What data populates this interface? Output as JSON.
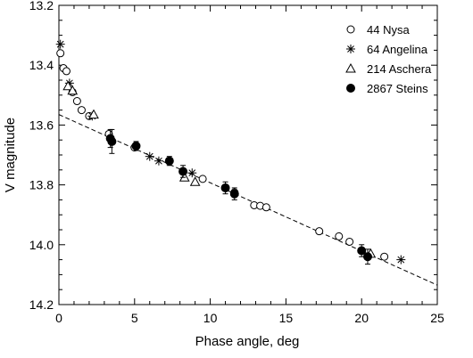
{
  "chart_data": {
    "type": "scatter",
    "xlabel": "Phase angle, deg",
    "ylabel": "V magnitude",
    "xlim": [
      0,
      25
    ],
    "ylim": [
      14.2,
      13.2
    ],
    "y_inverted": true,
    "x_ticks": [
      0,
      5,
      10,
      15,
      20,
      25
    ],
    "y_ticks": [
      13.2,
      13.4,
      13.6,
      13.8,
      14.0,
      14.2
    ],
    "y_tick_labels": [
      "13.2",
      "13.4",
      "13.6",
      "13.8",
      "14.0",
      "14.2"
    ],
    "legend_position": "top-right",
    "grid": false,
    "fit_line": {
      "style": "dashed",
      "x": [
        0,
        25
      ],
      "y": [
        13.565,
        14.135
      ]
    },
    "series": [
      {
        "name": "44 Nysa",
        "marker": "open-circle",
        "points": [
          {
            "x": 0.1,
            "y": 13.36
          },
          {
            "x": 0.3,
            "y": 13.41
          },
          {
            "x": 0.5,
            "y": 13.42
          },
          {
            "x": 0.9,
            "y": 13.49
          },
          {
            "x": 1.2,
            "y": 13.52
          },
          {
            "x": 1.5,
            "y": 13.55
          },
          {
            "x": 2.0,
            "y": 13.57
          },
          {
            "x": 3.3,
            "y": 13.63
          },
          {
            "x": 5.0,
            "y": 13.675
          },
          {
            "x": 9.5,
            "y": 13.78
          },
          {
            "x": 11.6,
            "y": 13.825
          },
          {
            "x": 12.9,
            "y": 13.868
          },
          {
            "x": 13.3,
            "y": 13.87
          },
          {
            "x": 13.7,
            "y": 13.875
          },
          {
            "x": 17.2,
            "y": 13.955
          },
          {
            "x": 18.5,
            "y": 13.972
          },
          {
            "x": 19.2,
            "y": 13.99
          },
          {
            "x": 21.5,
            "y": 14.04
          }
        ]
      },
      {
        "name": "64 Angelina",
        "marker": "asterisk",
        "points": [
          {
            "x": 0.1,
            "y": 13.33
          },
          {
            "x": 0.7,
            "y": 13.46
          },
          {
            "x": 2.2,
            "y": 13.57
          },
          {
            "x": 6.0,
            "y": 13.705
          },
          {
            "x": 6.6,
            "y": 13.72
          },
          {
            "x": 8.8,
            "y": 13.76
          },
          {
            "x": 22.6,
            "y": 14.05
          }
        ]
      },
      {
        "name": "214 Aschera",
        "marker": "open-triangle",
        "points": [
          {
            "x": 0.6,
            "y": 13.47
          },
          {
            "x": 0.9,
            "y": 13.485
          },
          {
            "x": 2.3,
            "y": 13.565
          },
          {
            "x": 8.3,
            "y": 13.775
          },
          {
            "x": 9.0,
            "y": 13.79
          },
          {
            "x": 20.6,
            "y": 14.03
          }
        ]
      },
      {
        "name": "2867 Steins",
        "marker": "filled-circle",
        "error_bars": true,
        "points": [
          {
            "x": 3.4,
            "y": 13.645,
            "err": 0.03
          },
          {
            "x": 3.5,
            "y": 13.655,
            "err": 0.04
          },
          {
            "x": 5.1,
            "y": 13.67,
            "err": 0.015
          },
          {
            "x": 7.3,
            "y": 13.72,
            "err": 0.015
          },
          {
            "x": 8.2,
            "y": 13.755,
            "err": 0.02
          },
          {
            "x": 11.0,
            "y": 13.81,
            "err": 0.02
          },
          {
            "x": 11.6,
            "y": 13.83,
            "err": 0.02
          },
          {
            "x": 20.0,
            "y": 14.02,
            "err": 0.02
          },
          {
            "x": 20.4,
            "y": 14.04,
            "err": 0.025
          }
        ]
      }
    ]
  }
}
